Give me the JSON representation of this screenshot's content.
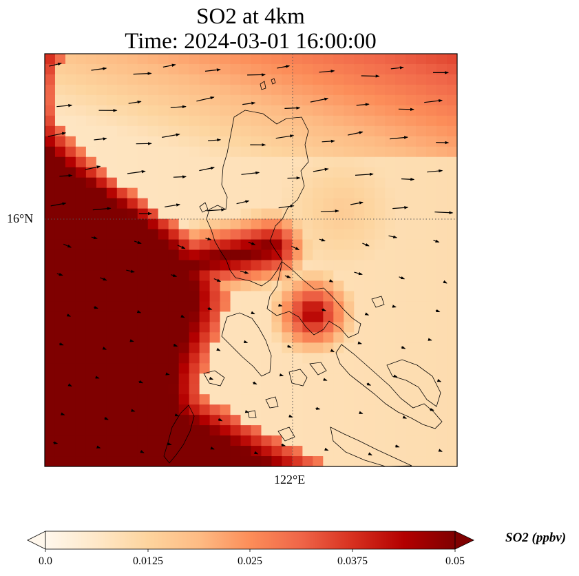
{
  "title": {
    "line1": "SO2 at 4km",
    "line2": "Time: 2024-03-01 16:00:00"
  },
  "map": {
    "lat_ticks": [
      "16°N"
    ],
    "lon_ticks": [
      "122°E"
    ],
    "gridlines": "dotted",
    "coastlines": true,
    "wind_vectors": true
  },
  "colorbar": {
    "label": "SO2 (ppbv)",
    "ticks": [
      "0.0",
      "0.0125",
      "0.025",
      "0.0375",
      "0.05"
    ],
    "vmin": 0.0,
    "vmax": 0.05,
    "extend": "both",
    "colormap": "OrRd",
    "colors": [
      "#fff7ec",
      "#fee8c8",
      "#fdd49e",
      "#fdbb84",
      "#fc8d59",
      "#ef6548",
      "#d7301f",
      "#b30000",
      "#7f0000"
    ]
  }
}
